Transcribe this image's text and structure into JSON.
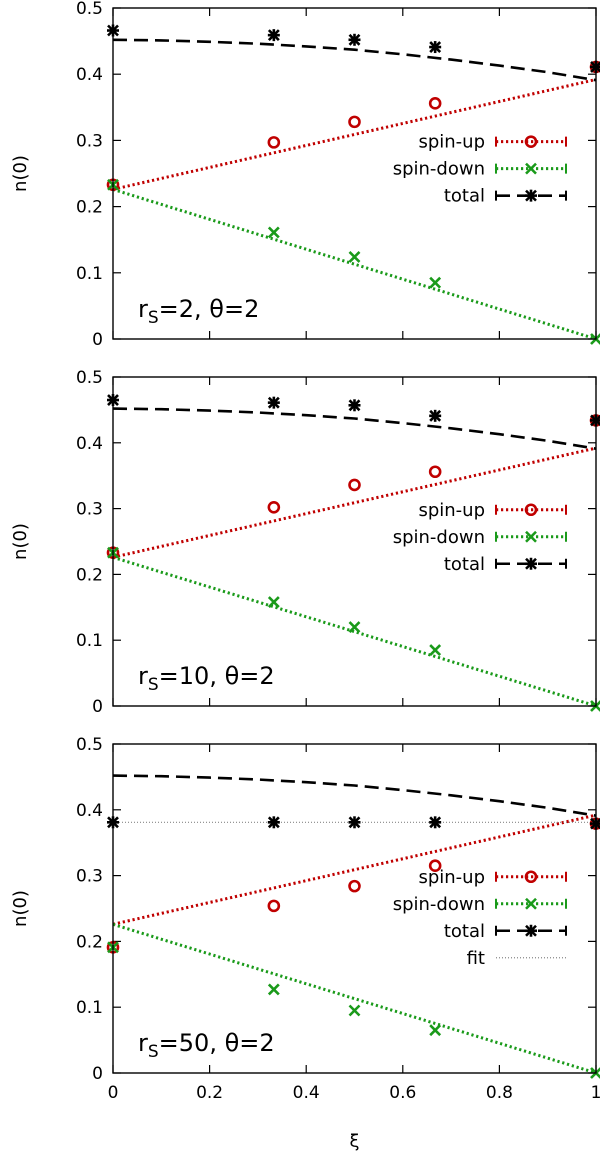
{
  "colors": {
    "spin_up": "#c00000",
    "spin_down": "#1a9a1a",
    "total": "#000000",
    "fit": "#888888"
  },
  "chart_data": [
    {
      "type": "line",
      "panel_label": {
        "prefix": "r",
        "sub": "S",
        "suffix": "=2, θ=2"
      },
      "xlim": [
        0,
        1
      ],
      "ylim": [
        0,
        0.5
      ],
      "xticks": [
        "0",
        "0.2",
        "0.4",
        "0.6",
        "0.8",
        "1"
      ],
      "yticks": [
        "0",
        "0.1",
        "0.2",
        "0.3",
        "0.4",
        "0.5"
      ],
      "show_xtick_labels": false,
      "xlabel": "",
      "ylabel": "n(0)",
      "legend_position": "right",
      "series": [
        {
          "name": "spin-up",
          "style": "dotted",
          "marker": "circle",
          "color": "#c00000",
          "line": {
            "x": [
              0,
              1
            ],
            "y": [
              0.226,
              0.392
            ]
          },
          "points": {
            "x": [
              0,
              0.333,
              0.5,
              0.667,
              1
            ],
            "y": [
              0.233,
              0.297,
              0.328,
              0.356,
              0.411
            ]
          }
        },
        {
          "name": "spin-down",
          "style": "dotted",
          "marker": "x",
          "color": "#1a9a1a",
          "line": {
            "x": [
              0,
              1
            ],
            "y": [
              0.226,
              0.0
            ]
          },
          "points": {
            "x": [
              0,
              0.333,
              0.5,
              0.667,
              1
            ],
            "y": [
              0.233,
              0.161,
              0.124,
              0.085,
              0.0
            ]
          }
        },
        {
          "name": "total",
          "style": "dashed",
          "marker": "star",
          "color": "#000000",
          "line": {
            "x": [
              0,
              0.1,
              0.2,
              0.3,
              0.4,
              0.5,
              0.6,
              0.7,
              0.8,
              0.9,
              1.0
            ],
            "y": [
              0.452,
              0.451,
              0.449,
              0.446,
              0.442,
              0.437,
              0.43,
              0.422,
              0.413,
              0.403,
              0.391
            ]
          },
          "points": {
            "x": [
              0,
              0.333,
              0.5,
              0.667,
              1
            ],
            "y": [
              0.466,
              0.459,
              0.452,
              0.441,
              0.411
            ]
          }
        }
      ]
    },
    {
      "type": "line",
      "panel_label": {
        "prefix": "r",
        "sub": "S",
        "suffix": "=10, θ=2"
      },
      "xlim": [
        0,
        1
      ],
      "ylim": [
        0,
        0.5
      ],
      "xticks": [
        "0",
        "0.2",
        "0.4",
        "0.6",
        "0.8",
        "1"
      ],
      "yticks": [
        "0",
        "0.1",
        "0.2",
        "0.3",
        "0.4",
        "0.5"
      ],
      "show_xtick_labels": false,
      "xlabel": "",
      "ylabel": "n(0)",
      "legend_position": "right",
      "series": [
        {
          "name": "spin-up",
          "style": "dotted",
          "marker": "circle",
          "color": "#c00000",
          "line": {
            "x": [
              0,
              1
            ],
            "y": [
              0.226,
              0.392
            ]
          },
          "points": {
            "x": [
              0,
              0.333,
              0.5,
              0.667,
              1
            ],
            "y": [
              0.233,
              0.302,
              0.336,
              0.356,
              0.434
            ]
          }
        },
        {
          "name": "spin-down",
          "style": "dotted",
          "marker": "x",
          "color": "#1a9a1a",
          "line": {
            "x": [
              0,
              1
            ],
            "y": [
              0.226,
              0.0
            ]
          },
          "points": {
            "x": [
              0,
              0.333,
              0.5,
              0.667,
              1
            ],
            "y": [
              0.233,
              0.158,
              0.12,
              0.085,
              0.0
            ]
          }
        },
        {
          "name": "total",
          "style": "dashed",
          "marker": "star",
          "color": "#000000",
          "line": {
            "x": [
              0,
              0.1,
              0.2,
              0.3,
              0.4,
              0.5,
              0.6,
              0.7,
              0.8,
              0.9,
              1.0
            ],
            "y": [
              0.452,
              0.451,
              0.449,
              0.446,
              0.442,
              0.437,
              0.43,
              0.422,
              0.413,
              0.403,
              0.391
            ]
          },
          "points": {
            "x": [
              0,
              0.333,
              0.5,
              0.667,
              1
            ],
            "y": [
              0.465,
              0.461,
              0.457,
              0.441,
              0.434
            ]
          }
        }
      ]
    },
    {
      "type": "line",
      "panel_label": {
        "prefix": "r",
        "sub": "S",
        "suffix": "=50, θ=2"
      },
      "xlim": [
        0,
        1
      ],
      "ylim": [
        0,
        0.5
      ],
      "xticks": [
        "0",
        "0.2",
        "0.4",
        "0.6",
        "0.8",
        "1"
      ],
      "yticks": [
        "0",
        "0.1",
        "0.2",
        "0.3",
        "0.4",
        "0.5"
      ],
      "show_xtick_labels": true,
      "xlabel": "ξ",
      "ylabel": "n(0)",
      "legend_position": "right",
      "series": [
        {
          "name": "spin-up",
          "style": "dotted",
          "marker": "circle",
          "color": "#c00000",
          "line": {
            "x": [
              0,
              1
            ],
            "y": [
              0.226,
              0.392
            ]
          },
          "points": {
            "x": [
              0,
              0.333,
              0.5,
              0.667,
              1
            ],
            "y": [
              0.191,
              0.254,
              0.284,
              0.315,
              0.379
            ]
          }
        },
        {
          "name": "spin-down",
          "style": "dotted",
          "marker": "x",
          "color": "#1a9a1a",
          "line": {
            "x": [
              0,
              1
            ],
            "y": [
              0.226,
              0.0
            ]
          },
          "points": {
            "x": [
              0,
              0.333,
              0.5,
              0.667,
              1
            ],
            "y": [
              0.191,
              0.127,
              0.095,
              0.065,
              0.0
            ]
          }
        },
        {
          "name": "total",
          "style": "dashed",
          "marker": "star",
          "color": "#000000",
          "line": {
            "x": [
              0,
              0.1,
              0.2,
              0.3,
              0.4,
              0.5,
              0.6,
              0.7,
              0.8,
              0.9,
              1.0
            ],
            "y": [
              0.452,
              0.451,
              0.449,
              0.446,
              0.442,
              0.437,
              0.43,
              0.422,
              0.413,
              0.403,
              0.391
            ]
          },
          "points": {
            "x": [
              0,
              0.333,
              0.5,
              0.667,
              1
            ],
            "y": [
              0.381,
              0.381,
              0.381,
              0.381,
              0.379
            ]
          }
        },
        {
          "name": "fit",
          "style": "fine-dotted",
          "marker": "none",
          "color": "#888888",
          "line": {
            "x": [
              0,
              1
            ],
            "y": [
              0.381,
              0.381
            ]
          },
          "points": {
            "x": [],
            "y": []
          }
        }
      ]
    }
  ]
}
